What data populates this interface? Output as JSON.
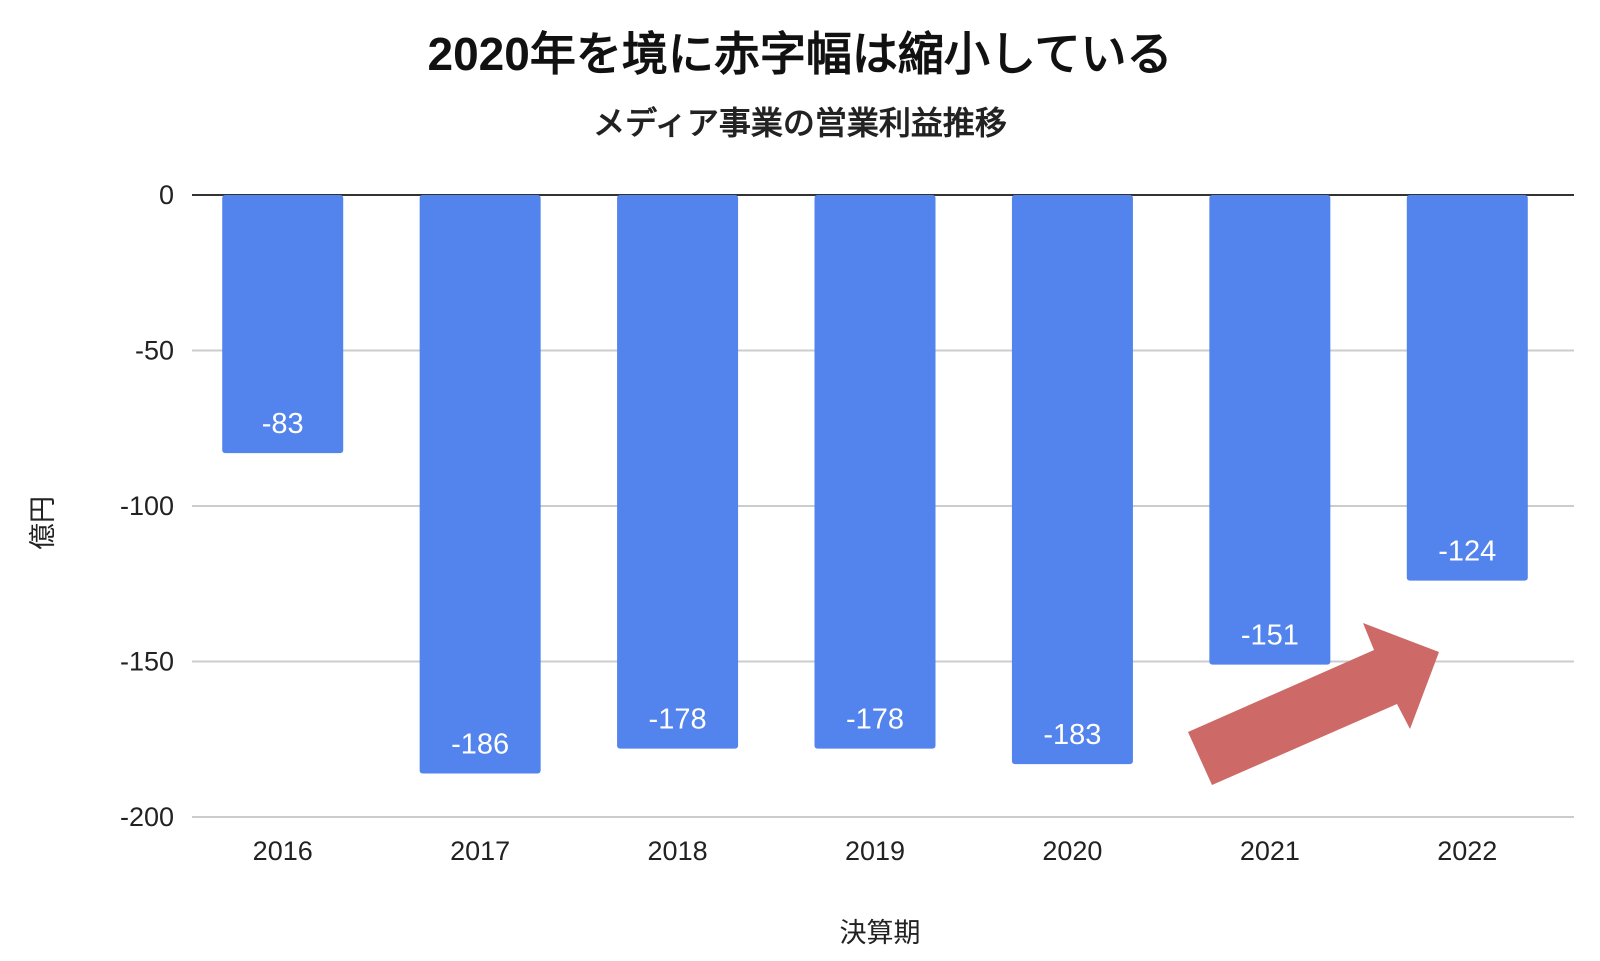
{
  "chart_data": {
    "type": "bar",
    "title": "2020年を境に赤字幅は縮小している",
    "subtitle": "メディア事業の営業利益推移",
    "xlabel": "決算期",
    "ylabel": "億円",
    "categories": [
      "2016",
      "2017",
      "2018",
      "2019",
      "2020",
      "2021",
      "2022"
    ],
    "values": [
      -83,
      -186,
      -178,
      -178,
      -183,
      -151,
      -124
    ],
    "data_labels": [
      "-83",
      "-186",
      "-178",
      "-178",
      "-183",
      "-151",
      "-124"
    ],
    "ylim": [
      -200,
      0
    ],
    "yticks": [
      0,
      -50,
      -100,
      -150,
      -200
    ],
    "ytick_labels": [
      "0",
      "-50",
      "-100",
      "-150",
      "-200"
    ],
    "grid": true,
    "bar_color": "#5383ec",
    "annotation": {
      "type": "arrow",
      "direction": "up-right",
      "color": "#cd6966",
      "from_category": "2021",
      "to_category": "2022"
    }
  }
}
